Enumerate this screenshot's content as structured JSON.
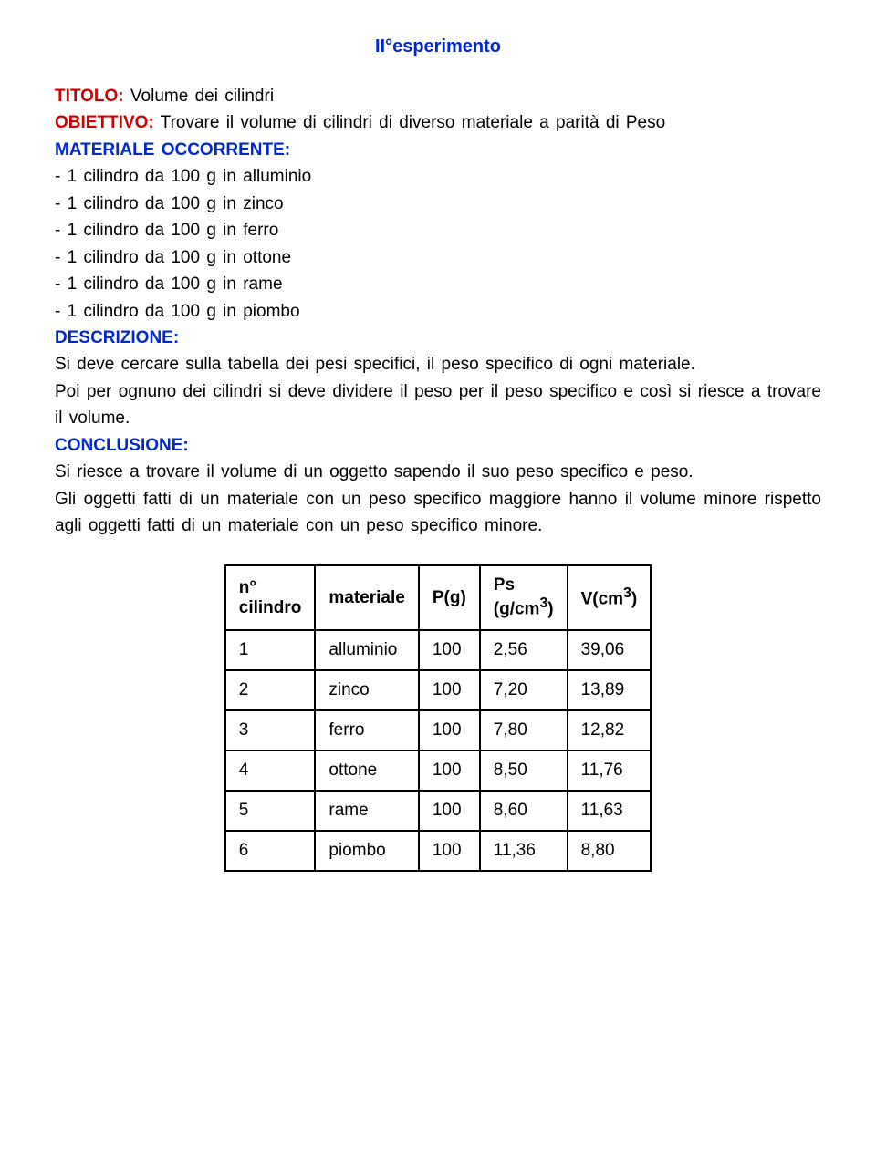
{
  "title": "II°esperimento",
  "labels": {
    "titolo": "TITOLO:",
    "obiettivo": "OBIETTIVO:",
    "materiale": "MATERIALE OCCORRENTE:",
    "descrizione": "DESCRIZIONE:",
    "conclusione": "CONCLUSIONE:"
  },
  "text": {
    "titolo_val": " Volume  dei  cilindri",
    "obiettivo_val": " Trovare  il  volume  di  cilindri di diverso materiale a parità di Peso",
    "mat1": "- 1 cilindro  da  100 g  in  alluminio",
    "mat2": "- 1 cilindro  da  100 g  in  zinco",
    "mat3": "- 1 cilindro  da  100 g  in  ferro",
    "mat4": "- 1 cilindro  da  100 g  in  ottone",
    "mat5": "- 1 cilindro  da  100 g  in  rame",
    "mat6": "- 1 cilindro  da  100 g  in  piombo",
    "descr_val": "Si  deve  cercare  sulla  tabella  dei  pesi  specifici,  il  peso specifico  di  ogni  materiale.",
    "descr_val2": "Poi  per  ognuno  dei  cilindri  si  deve  dividere  il  peso  per  il peso  specifico  e  così  si  riesce  a  trovare  il  volume.",
    "concl_val": "Si  riesce  a  trovare  il  volume  di  un  oggetto  sapendo  il  suo peso  specifico  e  peso.",
    "concl_val2": "Gli  oggetti  fatti  di  un  materiale  con  un  peso  specifico maggiore  hanno  il  volume  minore  rispetto  agli  oggetti  fatti di  un  materiale  con  un  peso  specifico  minore."
  },
  "table": {
    "headers": {
      "col1a": "n°",
      "col1b": "cilindro",
      "col2": "materiale",
      "col3": "P(g)",
      "col4a": "Ps",
      "col4b": "(g/cm",
      "col4c": ")",
      "col5a": "V(cm",
      "col5b": ")",
      "sup": "3"
    },
    "rows": [
      {
        "n": "1",
        "mat": "alluminio",
        "p": "100",
        "ps": "2,56",
        "v": "39,06"
      },
      {
        "n": "2",
        "mat": "zinco",
        "p": "100",
        "ps": "7,20",
        "v": "13,89"
      },
      {
        "n": "3",
        "mat": "ferro",
        "p": "100",
        "ps": "7,80",
        "v": "12,82"
      },
      {
        "n": "4",
        "mat": "ottone",
        "p": "100",
        "ps": "8,50",
        "v": "11,76"
      },
      {
        "n": "5",
        "mat": "rame",
        "p": "100",
        "ps": "8,60",
        "v": "11,63"
      },
      {
        "n": "6",
        "mat": "piombo",
        "p": "100",
        "ps": "11,36",
        "v": "8,80"
      }
    ]
  },
  "colors": {
    "red": "#d10000",
    "blue": "#0028cc",
    "black": "#000000",
    "background": "#ffffff"
  },
  "fonts": {
    "body_size_pt": 14,
    "title_size_pt": 15,
    "family": "Verdana"
  }
}
